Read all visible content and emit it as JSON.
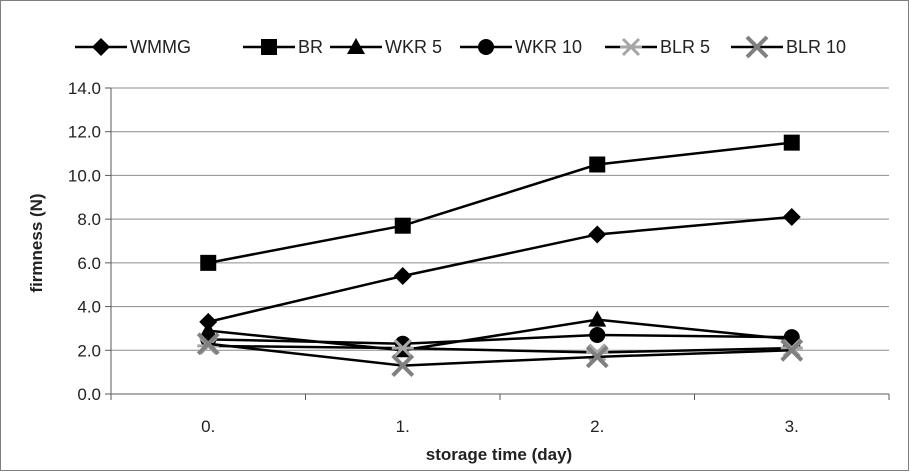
{
  "chart_data": {
    "type": "line",
    "title": "",
    "xlabel": "storage time  (day)",
    "ylabel": "firmness (N)",
    "categories": [
      "0.",
      "1.",
      "2.",
      "3."
    ],
    "ylim": [
      0,
      14
    ],
    "yticks": [
      "0.0",
      "2.0",
      "4.0",
      "6.0",
      "8.0",
      "10.0",
      "12.0",
      "14.0"
    ],
    "grid": "horizontal",
    "legend_position": "top",
    "series": [
      {
        "name": "WMMG",
        "marker": "diamond",
        "values": [
          3.3,
          5.4,
          7.3,
          8.1
        ]
      },
      {
        "name": "BR",
        "marker": "square",
        "values": [
          6.0,
          7.7,
          10.5,
          11.5
        ]
      },
      {
        "name": "WKR 5",
        "marker": "triangle",
        "values": [
          2.9,
          2.0,
          3.4,
          2.5
        ]
      },
      {
        "name": "WKR 10",
        "marker": "circle",
        "values": [
          2.5,
          2.3,
          2.7,
          2.6
        ]
      },
      {
        "name": "BLR 5",
        "marker": "star",
        "values": [
          2.2,
          2.1,
          1.9,
          2.1
        ]
      },
      {
        "name": "BLR 10",
        "marker": "x",
        "values": [
          2.3,
          1.3,
          1.7,
          2.0
        ]
      }
    ],
    "colors": {
      "line": "#000000",
      "x_marker": "#808080",
      "star_marker": "#a6a6a6",
      "grid": "#8c8c8c"
    }
  }
}
